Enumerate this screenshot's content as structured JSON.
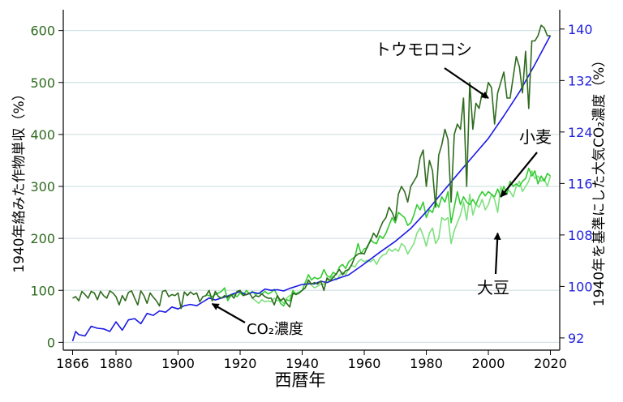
{
  "chart_data": {
    "type": "line",
    "xlabel": "西暦年",
    "ylabel_left": "1940年絡みた作物単収（%）",
    "ylabel_right": "1940年を基準にした大気CO₂濃度（%）",
    "xlim": [
      1863,
      2023
    ],
    "ylim_left": [
      -15,
      640
    ],
    "ylim_right": [
      90.1,
      143.0
    ],
    "x_ticks": [
      "1866",
      "1880",
      "1900",
      "1920",
      "1940",
      "1960",
      "1980",
      "2000",
      "2020"
    ],
    "y_left_ticks": [
      "0",
      "100",
      "200",
      "300",
      "400",
      "500",
      "600"
    ],
    "y_right_ticks": [
      "92",
      "100",
      "108",
      "116",
      "124",
      "132",
      "140"
    ],
    "colors": {
      "corn": "#2e6b1e",
      "wheat": "#33cc33",
      "soy": "#7ee07e",
      "co2": "#1a1ae6",
      "left_axis": "#2e6b1e",
      "right_axis": "#2222dd",
      "grid": "#d5e3e3"
    },
    "series": [
      {
        "name": "トウモロコシ",
        "axis": "left",
        "x": [
          1866,
          1867,
          1868,
          1869,
          1870,
          1871,
          1872,
          1873,
          1874,
          1875,
          1876,
          1877,
          1878,
          1879,
          1880,
          1881,
          1882,
          1883,
          1884,
          1885,
          1886,
          1887,
          1888,
          1889,
          1890,
          1891,
          1892,
          1893,
          1894,
          1895,
          1896,
          1897,
          1898,
          1899,
          1900,
          1901,
          1902,
          1903,
          1904,
          1905,
          1906,
          1907,
          1908,
          1909,
          1910,
          1911,
          1912,
          1913,
          1914,
          1915,
          1916,
          1917,
          1918,
          1919,
          1920,
          1921,
          1922,
          1923,
          1924,
          1925,
          1926,
          1927,
          1928,
          1929,
          1930,
          1931,
          1932,
          1933,
          1934,
          1935,
          1936,
          1937,
          1938,
          1939,
          1940,
          1941,
          1942,
          1943,
          1944,
          1945,
          1946,
          1947,
          1948,
          1949,
          1950,
          1951,
          1952,
          1953,
          1954,
          1955,
          1956,
          1957,
          1958,
          1959,
          1960,
          1961,
          1962,
          1963,
          1964,
          1965,
          1966,
          1967,
          1968,
          1969,
          1970,
          1971,
          1972,
          1973,
          1974,
          1975,
          1976,
          1977,
          1978,
          1979,
          1980,
          1981,
          1982,
          1983,
          1984,
          1985,
          1986,
          1987,
          1988,
          1989,
          1990,
          1991,
          1992,
          1993,
          1994,
          1995,
          1996,
          1997,
          1998,
          1999,
          2000,
          2001,
          2002,
          2003,
          2004,
          2005,
          2006,
          2007,
          2008,
          2009,
          2010,
          2011,
          2012,
          2013,
          2014,
          2015,
          2016,
          2017,
          2018,
          2019,
          2020
        ],
        "values": [
          85,
          88,
          80,
          98,
          92,
          85,
          98,
          95,
          82,
          98,
          90,
          85,
          99,
          95,
          88,
          72,
          90,
          80,
          96,
          99,
          85,
          72,
          99,
          90,
          75,
          95,
          87,
          80,
          70,
          98,
          100,
          88,
          92,
          90,
          95,
          65,
          97,
          90,
          97,
          92,
          95,
          78,
          88,
          90,
          100,
          80,
          98,
          88,
          85,
          90,
          86,
          92,
          85,
          98,
          100,
          90,
          92,
          95,
          85,
          90,
          88,
          93,
          88,
          85,
          85,
          72,
          90,
          80,
          85,
          75,
          68,
          95,
          92,
          95,
          100,
          105,
          120,
          112,
          115,
          112,
          118,
          100,
          124,
          118,
          125,
          132,
          140,
          130,
          138,
          140,
          150,
          165,
          170,
          172,
          170,
          185,
          195,
          210,
          202,
          218,
          232,
          240,
          260,
          250,
          235,
          285,
          300,
          290,
          270,
          300,
          310,
          320,
          355,
          370,
          300,
          350,
          330,
          260,
          360,
          380,
          410,
          390,
          270,
          400,
          420,
          410,
          470,
          300,
          500,
          410,
          460,
          450,
          480,
          470,
          500,
          490,
          420,
          480,
          500,
          520,
          470,
          470,
          510,
          550,
          530,
          480,
          560,
          450,
          580,
          580,
          590,
          610,
          605,
          590,
          590
        ]
      },
      {
        "name": "小麦",
        "axis": "left",
        "x": [
          1909,
          1910,
          1911,
          1912,
          1913,
          1914,
          1915,
          1916,
          1917,
          1918,
          1919,
          1920,
          1921,
          1922,
          1923,
          1924,
          1925,
          1926,
          1927,
          1928,
          1929,
          1930,
          1931,
          1932,
          1933,
          1934,
          1935,
          1936,
          1937,
          1938,
          1939,
          1940,
          1941,
          1942,
          1943,
          1944,
          1945,
          1946,
          1947,
          1948,
          1949,
          1950,
          1951,
          1952,
          1953,
          1954,
          1955,
          1956,
          1957,
          1958,
          1959,
          1960,
          1961,
          1962,
          1963,
          1964,
          1965,
          1966,
          1967,
          1968,
          1969,
          1970,
          1971,
          1972,
          1973,
          1974,
          1975,
          1976,
          1977,
          1978,
          1979,
          1980,
          1981,
          1982,
          1983,
          1984,
          1985,
          1986,
          1987,
          1988,
          1989,
          1990,
          1991,
          1992,
          1993,
          1994,
          1995,
          1996,
          1997,
          1998,
          1999,
          2000,
          2001,
          2002,
          2003,
          2004,
          2005,
          2006,
          2007,
          2008,
          2009,
          2010,
          2011,
          2012,
          2013,
          2014,
          2015,
          2016,
          2017,
          2018,
          2019,
          2020
        ],
        "values": [
          92,
          90,
          88,
          92,
          95,
          98,
          105,
          80,
          90,
          92,
          88,
          95,
          90,
          100,
          93,
          98,
          92,
          95,
          93,
          98,
          93,
          96,
          102,
          90,
          75,
          70,
          82,
          80,
          100,
          92,
          95,
          100,
          115,
          130,
          120,
          125,
          122,
          125,
          140,
          128,
          125,
          135,
          130,
          145,
          150,
          142,
          155,
          160,
          165,
          190,
          170,
          180,
          182,
          198,
          192,
          190,
          205,
          200,
          210,
          225,
          240,
          230,
          250,
          245,
          240,
          225,
          230,
          245,
          265,
          255,
          270,
          240,
          255,
          250,
          270,
          260,
          280,
          270,
          290,
          230,
          260,
          290,
          265,
          280,
          270,
          265,
          275,
          265,
          280,
          290,
          282,
          290,
          285,
          280,
          295,
          280,
          300,
          285,
          310,
          300,
          305,
          300,
          310,
          315,
          335,
          320,
          330,
          305,
          320,
          310,
          325,
          320
        ]
      },
      {
        "name": "大豆",
        "axis": "left",
        "x": [
          1924,
          1925,
          1926,
          1927,
          1928,
          1929,
          1930,
          1931,
          1932,
          1933,
          1934,
          1935,
          1936,
          1937,
          1938,
          1939,
          1940,
          1941,
          1942,
          1943,
          1944,
          1945,
          1946,
          1947,
          1948,
          1949,
          1950,
          1951,
          1952,
          1953,
          1954,
          1955,
          1956,
          1957,
          1958,
          1959,
          1960,
          1961,
          1962,
          1963,
          1964,
          1965,
          1966,
          1967,
          1968,
          1969,
          1970,
          1971,
          1972,
          1973,
          1974,
          1975,
          1976,
          1977,
          1978,
          1979,
          1980,
          1981,
          1982,
          1983,
          1984,
          1985,
          1986,
          1987,
          1988,
          1989,
          1990,
          1991,
          1992,
          1993,
          1994,
          1995,
          1996,
          1997,
          1998,
          1999,
          2000,
          2001,
          2002,
          2003,
          2004,
          2005,
          2006,
          2007,
          2008,
          2009,
          2010,
          2011,
          2012,
          2013,
          2014,
          2015,
          2016,
          2017,
          2018,
          2019,
          2020
        ],
        "values": [
          85,
          80,
          75,
          82,
          78,
          80,
          78,
          85,
          80,
          82,
          75,
          85,
          90,
          92,
          95,
          97,
          100,
          105,
          115,
          110,
          105,
          108,
          112,
          112,
          120,
          122,
          128,
          120,
          128,
          135,
          130,
          142,
          148,
          145,
          155,
          160,
          155,
          158,
          155,
          160,
          150,
          162,
          168,
          170,
          180,
          175,
          180,
          175,
          190,
          185,
          170,
          180,
          190,
          210,
          220,
          205,
          185,
          210,
          220,
          190,
          200,
          240,
          235,
          240,
          190,
          215,
          230,
          245,
          270,
          235,
          285,
          245,
          265,
          260,
          275,
          255,
          265,
          285,
          275,
          250,
          300,
          285,
          295,
          290,
          280,
          300,
          310,
          290,
          300,
          310,
          330,
          315,
          320,
          310,
          315,
          300,
          320
        ]
      },
      {
        "name": "CO₂濃度",
        "axis": "right",
        "x": [
          1866,
          1867,
          1868,
          1869,
          1870,
          1872,
          1874,
          1876,
          1878,
          1880,
          1882,
          1884,
          1886,
          1888,
          1890,
          1892,
          1894,
          1896,
          1898,
          1900,
          1902,
          1904,
          1906,
          1908,
          1910,
          1912,
          1914,
          1916,
          1918,
          1920,
          1922,
          1924,
          1926,
          1928,
          1930,
          1932,
          1934,
          1936,
          1938,
          1940,
          1942,
          1944,
          1946,
          1948,
          1950,
          1955,
          1960,
          1965,
          1970,
          1975,
          1980,
          1985,
          1990,
          1995,
          2000,
          2005,
          2010,
          2015,
          2020
        ],
        "values": [
          91.5,
          93.0,
          92.5,
          92.4,
          92.3,
          93.8,
          93.5,
          93.4,
          93.0,
          94.5,
          93.2,
          94.8,
          95.0,
          94.2,
          95.8,
          95.5,
          96.2,
          96.0,
          96.8,
          96.5,
          97.0,
          97.2,
          97.0,
          97.6,
          98.2,
          97.9,
          98.2,
          98.5,
          98.9,
          99.2,
          98.7,
          99.1,
          98.9,
          99.6,
          99.4,
          99.5,
          99.3,
          99.7,
          100.0,
          100.3,
          100.4,
          100.4,
          100.8,
          100.6,
          101.0,
          101.8,
          103.5,
          105.3,
          107.0,
          109.0,
          111.6,
          114.5,
          117.4,
          120.2,
          123.0,
          126.5,
          130.2,
          134.5,
          139.0
        ]
      }
    ],
    "annotations": [
      {
        "label": "トウモロコシ",
        "target_x": 2000,
        "target_y": 470,
        "axis": "left"
      },
      {
        "label": "小麦",
        "target_x": 2004,
        "target_y": 280,
        "axis": "left"
      },
      {
        "label": "大豆",
        "target_x": 2003,
        "target_y": 210,
        "axis": "left"
      },
      {
        "label": "CO₂濃度",
        "target_x": 1911,
        "target_y": 97.3,
        "axis": "right"
      }
    ],
    "grid": true,
    "legend": "none (inline arrow labels)"
  }
}
